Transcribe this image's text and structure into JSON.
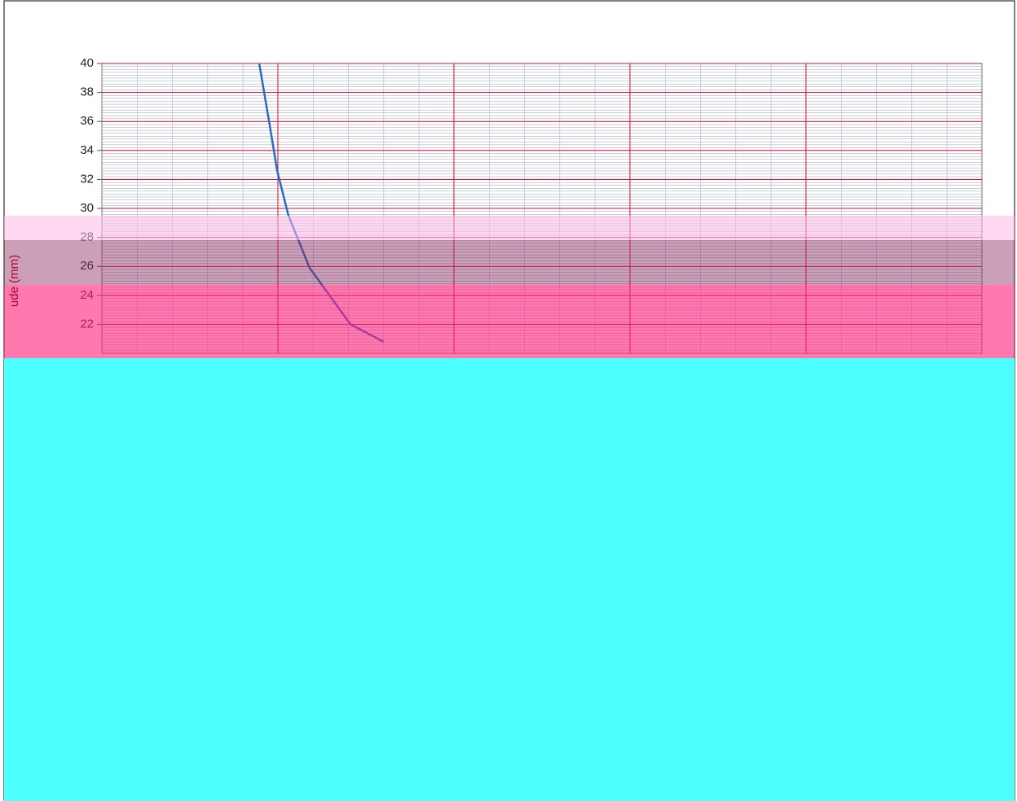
{
  "chart_data": {
    "type": "line",
    "y_label": "ude (mm)",
    "x": [
      4.47,
      4.75,
      4.98,
      5.3,
      5.9,
      7.06,
      8.0
    ],
    "series": [
      {
        "name": null,
        "color": "#2a6cc4",
        "values": [
          40,
          36,
          32.6,
          29.5,
          25.9,
          22,
          20.8
        ]
      }
    ],
    "xlim": [
      0,
      25
    ],
    "xticks": [
      5,
      10,
      15,
      20
    ],
    "ylim": [
      20,
      40
    ],
    "yticks": [
      22,
      24,
      26,
      28,
      30,
      32,
      34,
      36,
      38,
      40
    ],
    "grid": true,
    "grid_color": "#d0112b"
  }
}
